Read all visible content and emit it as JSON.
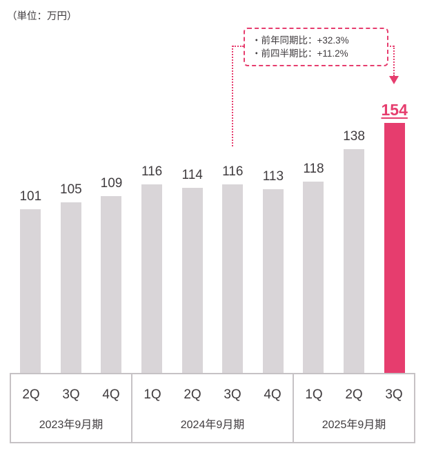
{
  "unit_label": "（単位：万円）",
  "annotation": {
    "lines": [
      "・前年同期比：+32.3%",
      "・前四半期比：+11.2%"
    ]
  },
  "chart_data": {
    "type": "bar",
    "title": "",
    "unit": "万円",
    "categories": [
      "2Q",
      "3Q",
      "4Q",
      "1Q",
      "2Q",
      "3Q",
      "4Q",
      "1Q",
      "2Q",
      "3Q"
    ],
    "values": [
      101,
      105,
      109,
      116,
      114,
      116,
      113,
      118,
      138,
      154
    ],
    "highlight_index": 9,
    "annotation_target_index": 5,
    "groups": [
      {
        "label": "2023年9月期",
        "span": 3
      },
      {
        "label": "2024年9月期",
        "span": 4
      },
      {
        "label": "2025年9月期",
        "span": 3
      }
    ],
    "ylim": [
      0,
      160
    ],
    "legend": "none",
    "grid": false,
    "colors": {
      "bar": "#d9d5d8",
      "accent": "#e63d6e",
      "text": "#3f3b3e",
      "axis_border": "#c6c2c5"
    }
  }
}
